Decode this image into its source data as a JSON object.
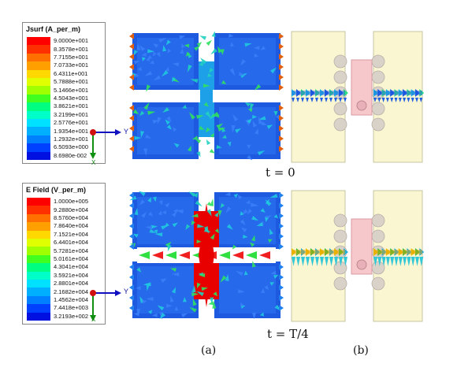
{
  "legend_top": {
    "title": "Jsurf (A_per_m)",
    "ticks": [
      "9.0000e+001",
      "8.3578e+001",
      "7.7155e+001",
      "7.0733e+001",
      "6.4311e+001",
      "5.7888e+001",
      "5.1466e+001",
      "4.5043e+001",
      "3.8621e+001",
      "3.2199e+001",
      "2.5776e+001",
      "1.9354e+001",
      "1.2932e+001",
      "6.5093e+000",
      "8.6980e-002"
    ],
    "colors": [
      "#ff0000",
      "#ff3000",
      "#ff7000",
      "#ffa000",
      "#ffd800",
      "#e0ff00",
      "#a0ff00",
      "#40ff20",
      "#00ff80",
      "#00ffc8",
      "#00e0ff",
      "#00b0ff",
      "#0080ff",
      "#0040ff",
      "#0010e0"
    ]
  },
  "legend_bottom": {
    "title": "E Field (V_per_m)",
    "ticks": [
      "1.0000e+005",
      "9.2880e+004",
      "8.5760e+004",
      "7.8640e+004",
      "7.1521e+004",
      "6.4401e+004",
      "5.7281e+004",
      "5.0161e+004",
      "4.3041e+004",
      "3.5921e+004",
      "2.8801e+004",
      "2.1682e+004",
      "1.4562e+004",
      "7.4418e+003",
      "3.2193e+002"
    ],
    "colors": [
      "#ff0000",
      "#ff3000",
      "#ff7000",
      "#ffa000",
      "#ffd800",
      "#e0ff00",
      "#a0ff00",
      "#40ff20",
      "#00ff80",
      "#00ffc8",
      "#00e0ff",
      "#00b0ff",
      "#0080ff",
      "#0040ff",
      "#0010e0"
    ]
  },
  "axes": {
    "y_label": "Y",
    "x_label": "X"
  },
  "captions": {
    "top": "t = 0",
    "bottom": "t = T/4"
  },
  "panel_labels": {
    "a": "(a)",
    "b": "(b)"
  },
  "colors": {
    "field_blue": "#1e5ae0",
    "field_cyan": "#20c8e0",
    "field_red": "#e80000",
    "pad": "#fbf6d2",
    "pad_border": "#c8c4a0",
    "bump": "#d8d2c8",
    "via": "#f6c8cc"
  }
}
